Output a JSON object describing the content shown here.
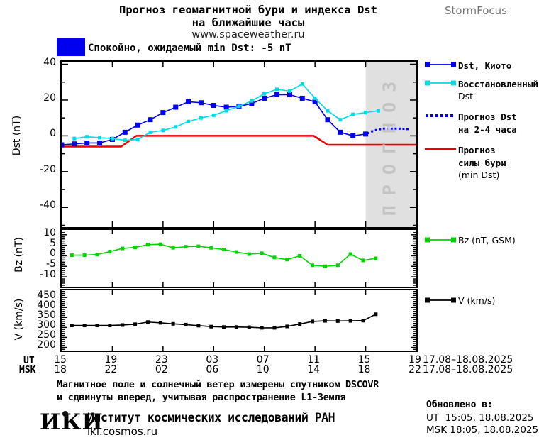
{
  "colors": {
    "dst_kyoto": "#0000ee",
    "dst_restored": "#00dce6",
    "dst_forecast": "#0000ee",
    "storm_forecast": "#ee0000",
    "bz": "#00d400",
    "v": "#000000",
    "quiet_box": "#0000ee",
    "forecast_band": "#e0e0e0",
    "forecast_band_label": "#c3c3c3"
  },
  "header": {
    "title_line1": "Прогноз геомагнитной бури и индекса Dst",
    "title_line2": "на ближайшие часы",
    "title_line3": "www.spaceweather.ru",
    "brand": "StormFocus"
  },
  "status": {
    "box_color": "#0000ee",
    "text": "Спокойно, ожидаемый min Dst: -5 nT"
  },
  "legend": {
    "dst_kyoto": "Dst, Киото",
    "restored_1": "Восстановленный",
    "restored_2": "Dst",
    "forecast_1": "Прогноз Dst",
    "forecast_2": "на 2-4 часа",
    "storm_1": "Прогноз",
    "storm_2": "силы бури",
    "storm_3": "(min Dst)",
    "bz": "Bz (nT, GSM)",
    "v": "V (km/s)"
  },
  "xaxis": {
    "ut_label": "UT",
    "msk_label": "MSK",
    "ut_ticks": [
      "15",
      "19",
      "23",
      "03",
      "07",
      "11",
      "15",
      "19"
    ],
    "msk_ticks": [
      "18",
      "22",
      "02",
      "06",
      "10",
      "14",
      "18",
      "22"
    ],
    "ut_date": "17.08–18.08.2025",
    "msk_date": "17.08–18.08.2025"
  },
  "footer": {
    "note1": "Магнитное поле и солнечный ветер измерены спутником DSCOVR",
    "note2": "и сдвинуты вперед, учитывая распространение L1-Земля",
    "logo": "ИКИ",
    "institute": "Институт космических исследований РАН",
    "site": "iki.cosmos.ru",
    "updated_label": "Обновлено в:",
    "updated_ut": "UT  15:05, 18.08.2025",
    "updated_msk": "MSK 18:05, 18.08.2025"
  },
  "chart_data": {
    "type": "line",
    "title": "Прогноз геомагнитной бури и индекса Dst на ближайшие часы",
    "x_axis_note": "hourly values, 15:00 UT 17.08.2025 to 19:00 UT 18.08.2025",
    "xlim": [
      0,
      28
    ],
    "xtick_step": 4,
    "grid": false,
    "legend_position": "right",
    "panels": [
      {
        "id": "dst",
        "ylabel": "Dst (nT)",
        "ylim": [
          -51,
          41.4
        ],
        "yticks": [
          40,
          20,
          0,
          -20,
          -40
        ],
        "ytick_labels": [
          "40",
          "20",
          "0",
          "-20",
          "-40"
        ],
        "yminor_step": 10,
        "forecast_band": {
          "x_start": 24,
          "x_end": 28,
          "label": "ПРОГНОЗ"
        },
        "series": [
          {
            "name": "Dst, Киото",
            "color": "#0000ee",
            "style": "line-marker",
            "marker": 7,
            "x_start": 0,
            "x_step": 1,
            "values": [
              -5,
              -4.5,
              -4,
              -4,
              -2,
              2,
              6,
              9,
              13,
              16,
              19,
              18.5,
              17,
              16,
              16.5,
              18,
              21,
              23,
              23,
              21,
              19,
              9,
              2,
              0,
              1
            ]
          },
          {
            "name": "Восстановленный Dst",
            "color": "#00dce6",
            "style": "line-marker",
            "marker": 5,
            "x_start": 1,
            "x_step": 1,
            "values": [
              -1.5,
              -0.5,
              -1,
              -1.5,
              -2.5,
              -2,
              2,
              3,
              5,
              8,
              10,
              11.5,
              14,
              16.5,
              19.5,
              23.5,
              26,
              25,
              29,
              21,
              14,
              9,
              12,
              13,
              14
            ]
          },
          {
            "name": "Прогноз Dst на 2-4 часа",
            "color": "#0000ee",
            "style": "dotted",
            "marker": 3,
            "x_start": 24.2,
            "x_step": 0.31,
            "values": [
              1.5,
              2.5,
              3.2,
              3.7,
              4,
              4,
              4,
              4,
              4,
              3.9,
              3.8
            ]
          },
          {
            "name": "Прогноз силы бури (min Dst)",
            "color": "#ee0000",
            "style": "line",
            "width": 2.5,
            "x": [
              0,
              4.7,
              5.9,
              19.9,
              21,
              28
            ],
            "values": [
              -6,
              -6,
              0,
              0,
              -5,
              -5
            ]
          }
        ]
      },
      {
        "id": "bz",
        "ylabel": "Bz (nT)",
        "ylim": [
          -14.7,
          12.3
        ],
        "yticks": [
          10,
          5,
          0,
          -5,
          -10
        ],
        "ytick_labels": [
          "10",
          "5",
          "0",
          "-5",
          "-10"
        ],
        "yminor_step": 1,
        "series": [
          {
            "name": "Bz (nT, GSM)",
            "color": "#00d400",
            "style": "line-marker",
            "marker": 5,
            "x_start": 0.8,
            "x_step": 1,
            "values": [
              0.3,
              0.3,
              0.6,
              2,
              3.5,
              4,
              5.3,
              5.5,
              3.8,
              4.3,
              4.5,
              3.8,
              3,
              1.8,
              0.8,
              1.2,
              -0.8,
              -1.8,
              0,
              -4.5,
              -5,
              -4.5,
              0.8,
              -2.2,
              -1.2
            ]
          }
        ]
      },
      {
        "id": "v",
        "ylabel": "V (km/s)",
        "ylim": [
          184,
          486
        ],
        "yticks": [
          450,
          400,
          350,
          300,
          250,
          200
        ],
        "ytick_labels": [
          "450",
          "400",
          "350",
          "300",
          "250",
          "200"
        ],
        "yminor_step": 10,
        "series": [
          {
            "name": "V (km/s)",
            "color": "#000000",
            "style": "line-marker",
            "marker": 5,
            "x_start": 0.8,
            "x_step": 1,
            "values": [
              310,
              310,
              310,
              310,
              312,
              316,
              327,
              323,
              318,
              314,
              309,
              304,
              302,
              302,
              301,
              298,
              298,
              305,
              317,
              330,
              333,
              332,
              333,
              334,
              366
            ]
          }
        ]
      }
    ]
  }
}
